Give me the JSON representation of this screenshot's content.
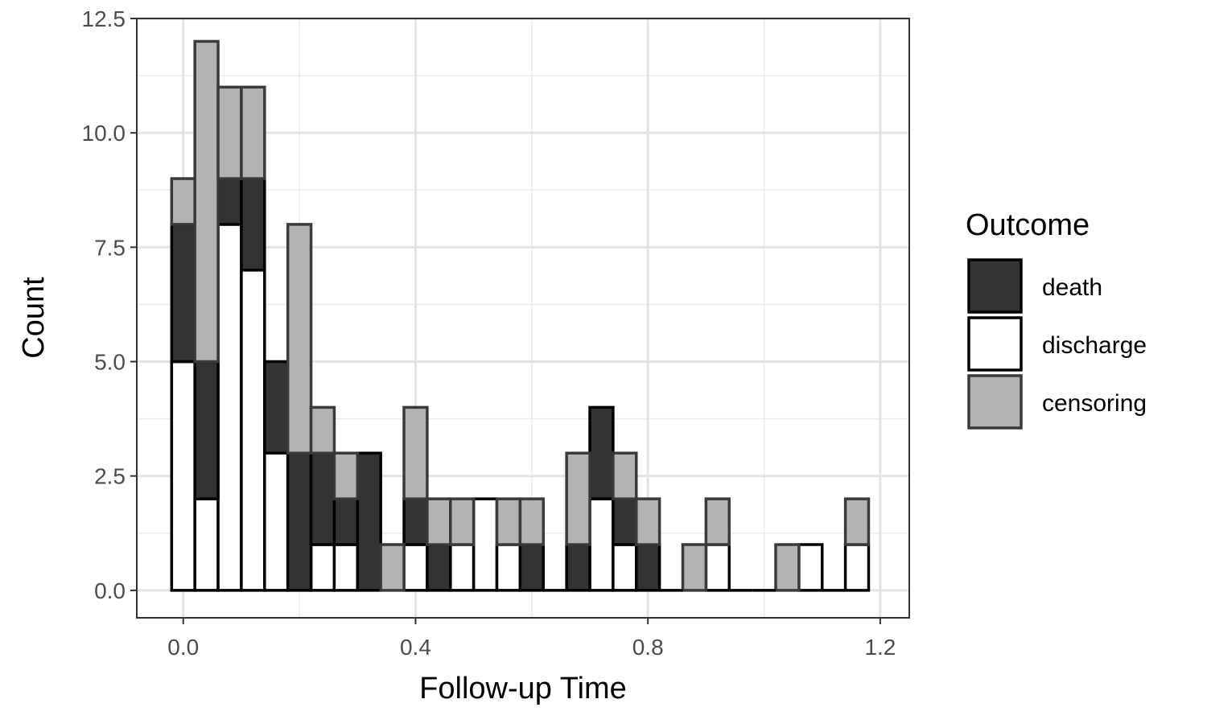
{
  "chart_data": {
    "type": "bar",
    "subtype": "stacked-histogram",
    "title": "",
    "xlabel": "Follow-up Time",
    "ylabel": "Count",
    "xlim": [
      -0.08,
      1.25
    ],
    "ylim": [
      -0.6,
      12.5
    ],
    "bin_width": 0.04,
    "x_ticks": [
      0.0,
      0.4,
      0.8,
      1.2
    ],
    "x_tick_labels": [
      "0.0",
      "0.4",
      "0.8",
      "1.2"
    ],
    "y_ticks": [
      0.0,
      2.5,
      5.0,
      7.5,
      10.0,
      12.5
    ],
    "y_tick_labels": [
      "0.0",
      "2.5",
      "5.0",
      "7.5",
      "10.0",
      "12.5"
    ],
    "grid": true,
    "legend": {
      "title": "Outcome",
      "position": "right",
      "entries": [
        "death",
        "discharge",
        "censoring"
      ]
    },
    "x": [
      0.0,
      0.04,
      0.08,
      0.12,
      0.16,
      0.2,
      0.24,
      0.28,
      0.32,
      0.36,
      0.4,
      0.44,
      0.48,
      0.52,
      0.56,
      0.6,
      0.64,
      0.68,
      0.72,
      0.76,
      0.8,
      0.84,
      0.88,
      0.92,
      0.96,
      1.0,
      1.04,
      1.08,
      1.12,
      1.16
    ],
    "series": [
      {
        "name": "discharge",
        "color": "#ffffff",
        "values": [
          5,
          2,
          8,
          7,
          3,
          0,
          1,
          1,
          0,
          0,
          1,
          0,
          1,
          2,
          1,
          0,
          0,
          0,
          2,
          1,
          0,
          0,
          0,
          1,
          0,
          0,
          0,
          1,
          0,
          1
        ]
      },
      {
        "name": "death",
        "color": "#333333",
        "values": [
          3,
          3,
          1,
          2,
          2,
          3,
          2,
          1,
          3,
          0,
          1,
          1,
          0,
          0,
          0,
          1,
          0,
          1,
          2,
          1,
          1,
          0,
          0,
          0,
          0,
          0,
          0,
          0,
          0,
          0
        ]
      },
      {
        "name": "censoring",
        "color": "#b3b3b3",
        "values": [
          1,
          7,
          2,
          2,
          0,
          5,
          1,
          1,
          0,
          1,
          2,
          1,
          1,
          0,
          1,
          1,
          0,
          2,
          0,
          1,
          1,
          0,
          1,
          1,
          0,
          0,
          1,
          0,
          0,
          1
        ]
      }
    ]
  }
}
